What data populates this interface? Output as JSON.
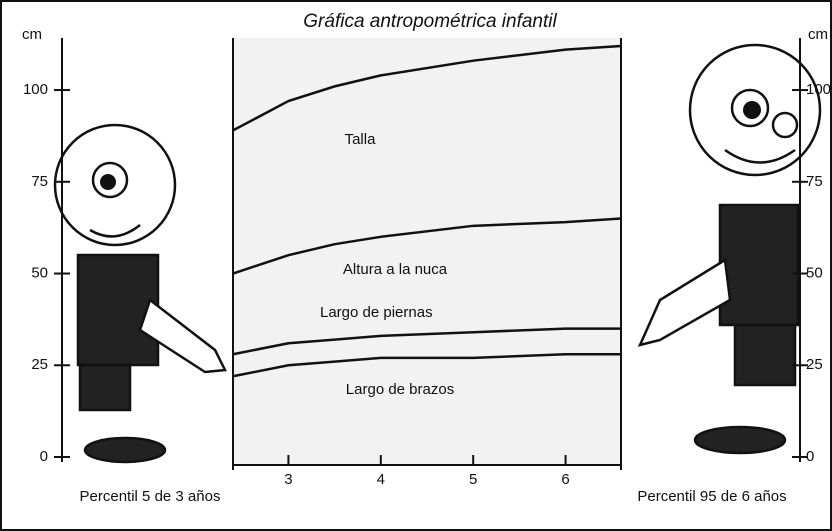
{
  "chart_data": {
    "type": "line",
    "title": "Gráfica antropométrica infantil",
    "y_label": "cm",
    "y2_label": "cm",
    "left_caption": "Percentil 5 de 3 años",
    "right_caption": "Percentil 95 de 6 años",
    "x": [
      2.4,
      3,
      3.5,
      4,
      5,
      6,
      6.6
    ],
    "xlim": [
      2.4,
      6.6
    ],
    "xticks": [
      3,
      4,
      5,
      6
    ],
    "ylim": [
      0,
      115
    ],
    "yticks": [
      0,
      25,
      50,
      75,
      100
    ],
    "y2lim": [
      0,
      115
    ],
    "y2ticks": [
      0,
      25,
      50,
      75,
      100
    ],
    "series": [
      {
        "name": "Talla",
        "color": "#111111",
        "values": [
          89,
          97,
          101,
          104,
          108,
          111,
          112
        ]
      },
      {
        "name": "Altura a la nuca",
        "color": "#111111",
        "values": [
          50,
          55,
          58,
          60,
          63,
          64,
          65
        ]
      },
      {
        "name": "Largo de piernas",
        "color": "#111111",
        "values": [
          28,
          31,
          32,
          33,
          34,
          35,
          35
        ]
      },
      {
        "name": "Largo de brazos",
        "color": "#111111",
        "values": [
          22,
          25,
          26,
          27,
          27,
          28,
          28
        ]
      }
    ]
  }
}
